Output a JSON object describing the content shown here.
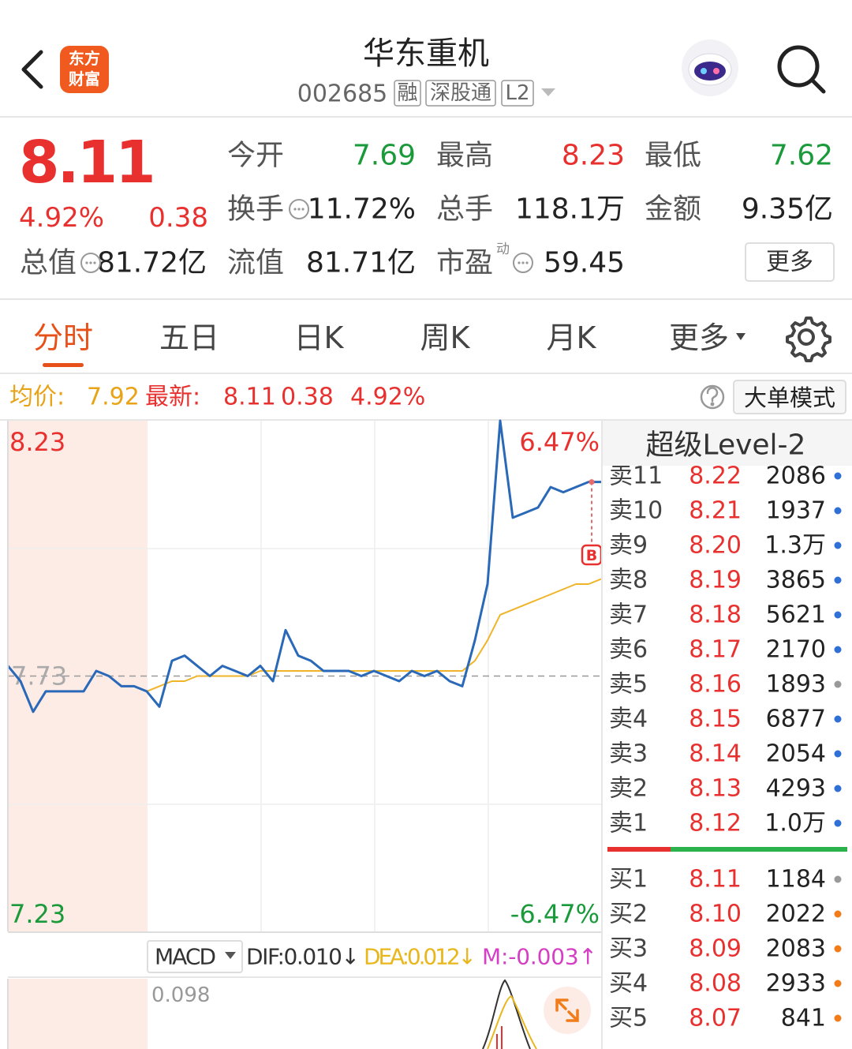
{
  "header": {
    "logo": [
      "东方",
      "财富"
    ],
    "title": "华东重机",
    "code": "002685",
    "tags": [
      "融",
      "深股通",
      "L2"
    ]
  },
  "quote": {
    "price": "8.11",
    "pct": "4.92%",
    "change": "0.38",
    "stats": [
      {
        "label": "今开",
        "value": "7.69"
      },
      {
        "label": "最高",
        "value": "8.23"
      },
      {
        "label": "最低",
        "value": "7.62"
      },
      {
        "label": "换手",
        "value": "11.72%"
      },
      {
        "label": "总手",
        "value": "118.1万"
      },
      {
        "label": "金额",
        "value": "9.35亿"
      },
      {
        "label": "总值",
        "value": "81.72亿"
      },
      {
        "label": "流值",
        "value": "81.71亿"
      },
      {
        "label": "市盈",
        "sup": "动",
        "value": "59.45"
      }
    ],
    "more": "更多"
  },
  "tabs": [
    "分时",
    "五日",
    "日K",
    "周K",
    "月K",
    "更多"
  ],
  "info_bar": {
    "avg_label": "均价:",
    "avg": "7.92",
    "latest_label": "最新:",
    "latest": "8.11",
    "change": "0.38",
    "pct": "4.92%",
    "mode": "大单模式"
  },
  "intraday": {
    "ylim": [
      7.23,
      8.23
    ],
    "prev_close": 7.73,
    "pct_labels": [
      "6.47%",
      "-6.47%"
    ],
    "marker": "B",
    "price": [
      7.75,
      7.72,
      7.66,
      7.7,
      7.7,
      7.7,
      7.7,
      7.74,
      7.73,
      7.71,
      7.71,
      7.7,
      7.67,
      7.76,
      7.77,
      7.75,
      7.73,
      7.75,
      7.74,
      7.73,
      7.75,
      7.72,
      7.82,
      7.77,
      7.76,
      7.74,
      7.74,
      7.74,
      7.73,
      7.74,
      7.73,
      7.72,
      7.74,
      7.73,
      7.74,
      7.72,
      7.71,
      7.8,
      7.91,
      8.23,
      8.04,
      8.05,
      8.06,
      8.1,
      8.09,
      8.1,
      8.11,
      8.11
    ],
    "avg": [
      null,
      null,
      null,
      null,
      null,
      null,
      null,
      null,
      null,
      null,
      null,
      7.7,
      7.71,
      7.72,
      7.72,
      7.73,
      7.73,
      7.73,
      7.73,
      7.73,
      7.74,
      7.74,
      7.74,
      7.74,
      7.74,
      7.74,
      7.74,
      7.74,
      7.74,
      7.74,
      7.74,
      7.74,
      7.74,
      7.74,
      7.74,
      7.74,
      7.74,
      7.76,
      7.8,
      7.85,
      7.86,
      7.87,
      7.88,
      7.89,
      7.9,
      7.91,
      7.91,
      7.92
    ],
    "price_color": "#2a68b8",
    "avg_color": "#f0b429"
  },
  "macd": {
    "name": "MACD",
    "dif": "DIF:0.010↓",
    "dea": "DEA:0.012↓",
    "m": "M:-0.003↑",
    "top_label": "0.098"
  },
  "order_book": {
    "title": "超级Level-2",
    "asks": [
      {
        "label": "卖11",
        "price": "8.22",
        "volume": "2086",
        "dot": "#2f6fd6"
      },
      {
        "label": "卖10",
        "price": "8.21",
        "volume": "1937",
        "dot": "#2f6fd6"
      },
      {
        "label": "卖9",
        "price": "8.20",
        "volume": "1.3万",
        "dot": "#2f6fd6"
      },
      {
        "label": "卖8",
        "price": "8.19",
        "volume": "3865",
        "dot": "#2f6fd6"
      },
      {
        "label": "卖7",
        "price": "8.18",
        "volume": "5621",
        "dot": "#2f6fd6"
      },
      {
        "label": "卖6",
        "price": "8.17",
        "volume": "2170",
        "dot": "#2f6fd6"
      },
      {
        "label": "卖5",
        "price": "8.16",
        "volume": "1893",
        "dot": "#999999"
      },
      {
        "label": "卖4",
        "price": "8.15",
        "volume": "6877",
        "dot": "#2f6fd6"
      },
      {
        "label": "卖3",
        "price": "8.14",
        "volume": "2054",
        "dot": "#2f6fd6"
      },
      {
        "label": "卖2",
        "price": "8.13",
        "volume": "4293",
        "dot": "#2f6fd6"
      },
      {
        "label": "卖1",
        "price": "8.12",
        "volume": "1.0万",
        "dot": "#2f6fd6"
      }
    ],
    "bids": [
      {
        "label": "买1",
        "price": "8.11",
        "volume": "1184",
        "dot": "#999999"
      },
      {
        "label": "买2",
        "price": "8.10",
        "volume": "2022",
        "dot": "#f07c1a"
      },
      {
        "label": "买3",
        "price": "8.09",
        "volume": "2083",
        "dot": "#f07c1a"
      },
      {
        "label": "买4",
        "price": "8.08",
        "volume": "2933",
        "dot": "#f07c1a"
      },
      {
        "label": "买5",
        "price": "8.07",
        "volume": "841",
        "dot": "#f07c1a"
      }
    ]
  }
}
